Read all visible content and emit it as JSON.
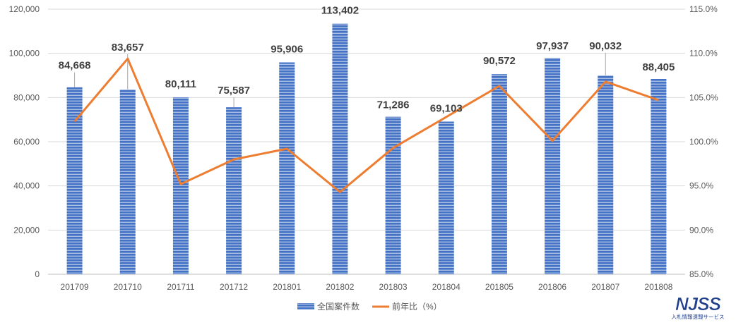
{
  "chart_data": {
    "type": "bar",
    "categories": [
      "201709",
      "201710",
      "201711",
      "201712",
      "201801",
      "201802",
      "201803",
      "201804",
      "201805",
      "201806",
      "201807",
      "201808"
    ],
    "series": [
      {
        "name": "全国案件数",
        "type": "bar",
        "axis": "left",
        "values": [
          84668,
          83657,
          80111,
          75587,
          95906,
          113402,
          71286,
          69103,
          90572,
          97937,
          90032,
          88405
        ],
        "labels": [
          "84,668",
          "83,657",
          "80,111",
          "75,587",
          "95,906",
          "113,402",
          "71,286",
          "69,103",
          "90,572",
          "97,937",
          "90,032",
          "88,405"
        ]
      },
      {
        "name": "前年比（%）",
        "type": "line",
        "axis": "right",
        "values": [
          102.3,
          109.4,
          95.2,
          98.0,
          99.2,
          94.3,
          99.3,
          102.8,
          106.3,
          100.1,
          106.8,
          104.7
        ]
      }
    ],
    "y_left": {
      "ylim": [
        0,
        120000
      ],
      "ticks": [
        0,
        20000,
        40000,
        60000,
        80000,
        100000,
        120000
      ],
      "tick_labels": [
        "0",
        "20,000",
        "40,000",
        "60,000",
        "80,000",
        "100,000",
        "120,000"
      ]
    },
    "y_right": {
      "ylim": [
        85,
        115
      ],
      "ticks": [
        85,
        90,
        95,
        100,
        105,
        110,
        115
      ],
      "tick_labels": [
        "85.0%",
        "90.0%",
        "95.0%",
        "100.0%",
        "105.0%",
        "110.0%",
        "115.0%"
      ]
    },
    "grid": true,
    "legend_position": "bottom",
    "colors": {
      "bar": "#4472C4",
      "bar_stripe": "#ffffff",
      "line": "#ED7D31",
      "grid": "#D9D9D9"
    }
  },
  "logo": {
    "text": "NJSS",
    "subtitle": "入札情報速報サービス"
  }
}
